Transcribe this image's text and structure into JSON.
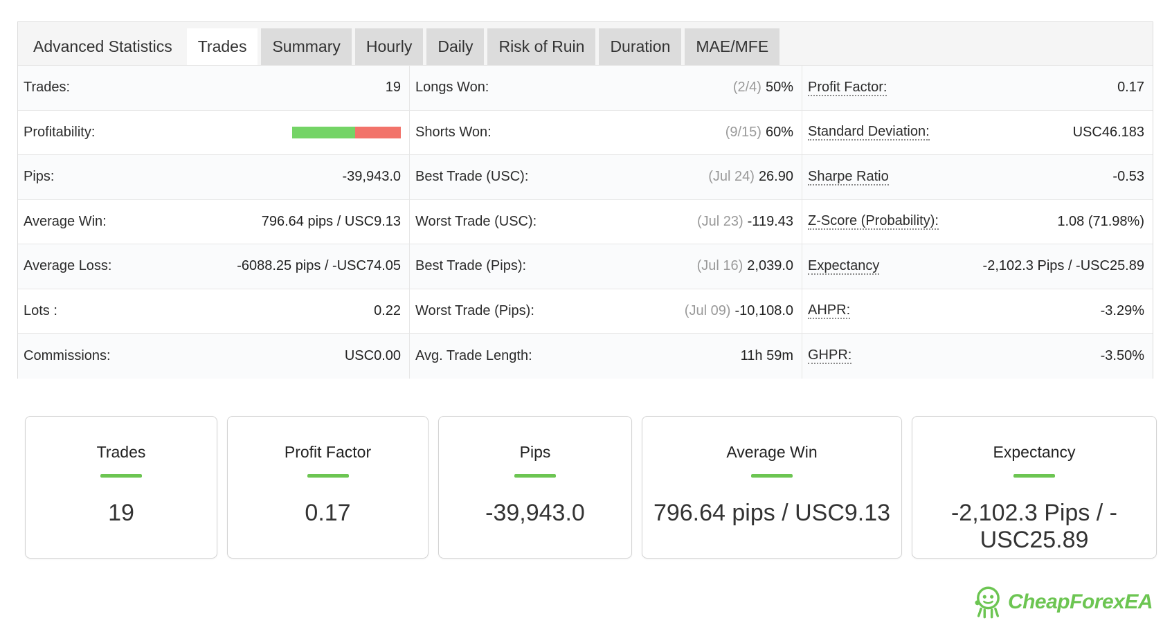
{
  "tabs": [
    {
      "label": "Advanced Statistics",
      "style": "plain"
    },
    {
      "label": "Trades",
      "style": "active"
    },
    {
      "label": "Summary",
      "style": "boxed"
    },
    {
      "label": "Hourly",
      "style": "boxed"
    },
    {
      "label": "Daily",
      "style": "boxed"
    },
    {
      "label": "Risk of Ruin",
      "style": "boxed"
    },
    {
      "label": "Duration",
      "style": "boxed"
    },
    {
      "label": "MAE/MFE",
      "style": "boxed"
    }
  ],
  "col1": [
    {
      "label": "Trades:",
      "value": "19"
    },
    {
      "label": "Profitability:",
      "value": ""
    },
    {
      "label": "Pips:",
      "value": "-39,943.0"
    },
    {
      "label": "Average Win:",
      "value": "796.64 pips / USC9.13"
    },
    {
      "label": "Average Loss:",
      "value": "-6088.25 pips / -USC74.05"
    },
    {
      "label": "Lots :",
      "value": "0.22"
    },
    {
      "label": "Commissions:",
      "value": "USC0.00"
    }
  ],
  "profitability": {
    "win_fraction": 0.58,
    "win_color": "#74d466",
    "loss_color": "#f2736a"
  },
  "col2": [
    {
      "label": "Longs Won:",
      "muted": "(2/4)",
      "value": "50%"
    },
    {
      "label": "Shorts Won:",
      "muted": "(9/15)",
      "value": "60%"
    },
    {
      "label": "Best Trade (USC):",
      "muted": "(Jul 24)",
      "value": "26.90"
    },
    {
      "label": "Worst Trade (USC):",
      "muted": "(Jul 23)",
      "value": "-119.43"
    },
    {
      "label": "Best Trade (Pips):",
      "muted": "(Jul 16)",
      "value": "2,039.0"
    },
    {
      "label": "Worst Trade (Pips):",
      "muted": "(Jul 09)",
      "value": "-10,108.0"
    },
    {
      "label": "Avg. Trade Length:",
      "muted": "",
      "value": "11h 59m"
    }
  ],
  "col3": [
    {
      "label": "Profit Factor:",
      "value": "0.17"
    },
    {
      "label": "Standard Deviation:",
      "value": "USC46.183"
    },
    {
      "label": "Sharpe Ratio",
      "value": "-0.53"
    },
    {
      "label": "Z-Score (Probability):",
      "value": "1.08 (71.98%)"
    },
    {
      "label": "Expectancy",
      "value": "-2,102.3 Pips / -USC25.89"
    },
    {
      "label": "AHPR:",
      "value": "-3.29%"
    },
    {
      "label": "GHPR:",
      "value": "-3.50%"
    }
  ],
  "cards": [
    {
      "title": "Trades",
      "value": "19"
    },
    {
      "title": "Profit Factor",
      "value": "0.17"
    },
    {
      "title": "Pips",
      "value": "-39,943.0"
    },
    {
      "title": "Average Win",
      "value": "796.64 pips / USC9.13"
    },
    {
      "title": "Expectancy",
      "value": "-2,102.3 Pips / -USC25.89"
    }
  ],
  "logo": {
    "text": "CheapForexEA",
    "color": "#6cc552"
  }
}
